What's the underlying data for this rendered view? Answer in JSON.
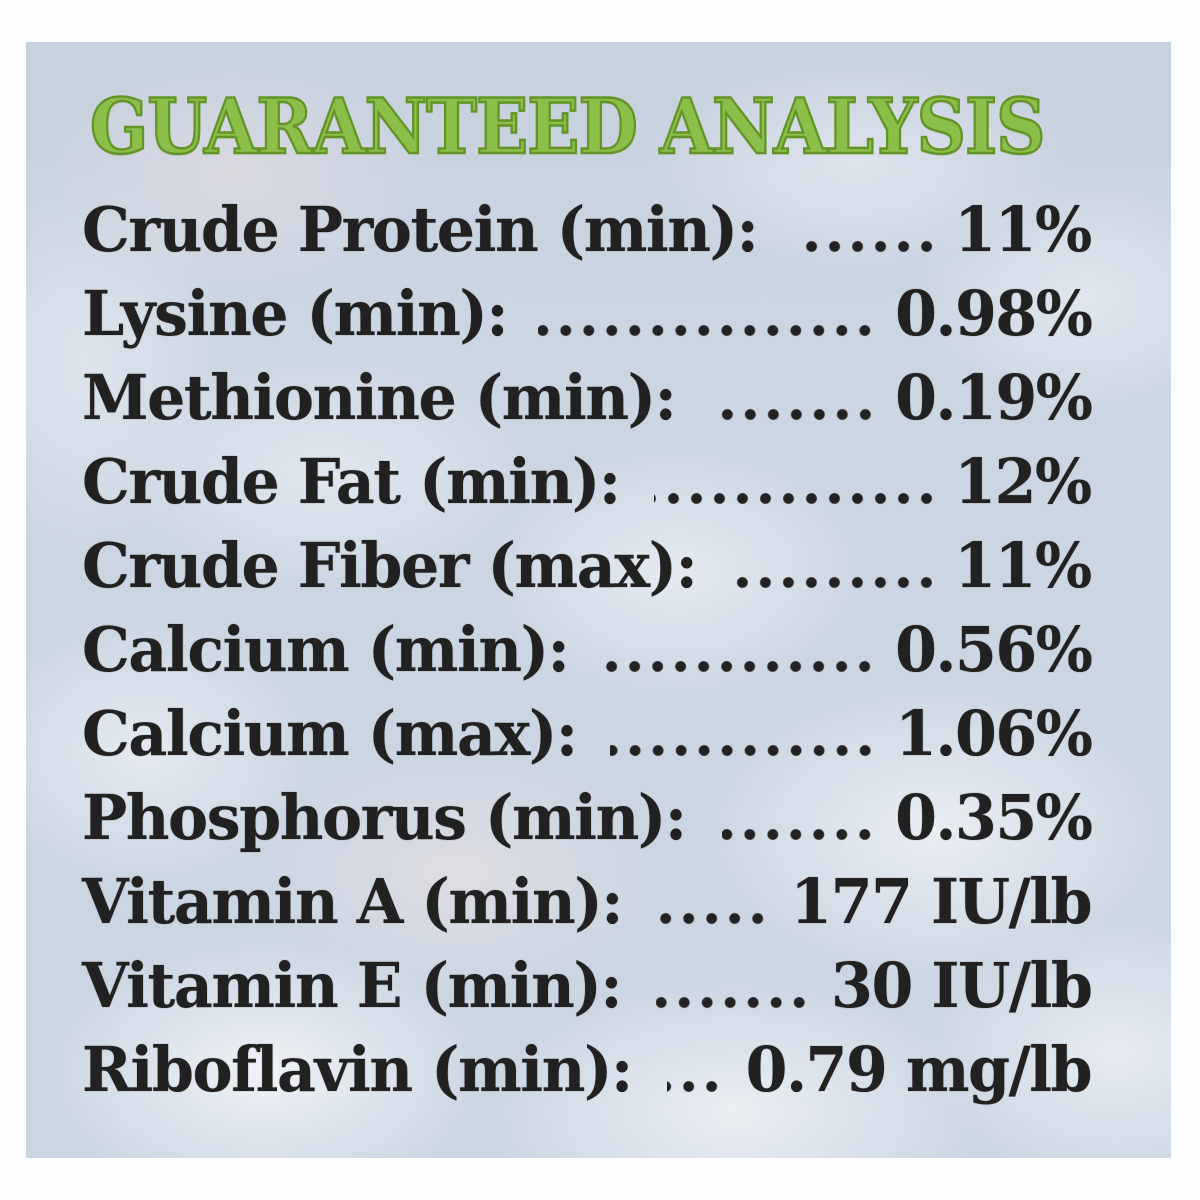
{
  "label": {
    "title": "GUARANTEED ANALYSIS",
    "rows": [
      {
        "name": "Crude Protein (min):",
        "value": "11%"
      },
      {
        "name": "Lysine (min):",
        "value": "0.98%"
      },
      {
        "name": "Methionine (min):",
        "value": "0.19%"
      },
      {
        "name": "Crude Fat (min):",
        "value": "12%"
      },
      {
        "name": "Crude Fiber (max):",
        "value": "11%"
      },
      {
        "name": "Calcium (min):",
        "value": "0.56%"
      },
      {
        "name": "Calcium (max):",
        "value": "1.06%"
      },
      {
        "name": "Phosphorus (min):",
        "value": "0.35%"
      },
      {
        "name": "Vitamin A (min):",
        "value": "177 IU/lb"
      },
      {
        "name": "Vitamin E (min):",
        "value": "30 IU/lb"
      },
      {
        "name": "Riboflavin (min):",
        "value": "0.79 mg/lb"
      }
    ],
    "colors": {
      "title_green": "#8cbf4a",
      "title_outline": "#649427",
      "text": "#212121",
      "label_background": "#ccd6e2",
      "frame_background": "#fefefe"
    }
  }
}
